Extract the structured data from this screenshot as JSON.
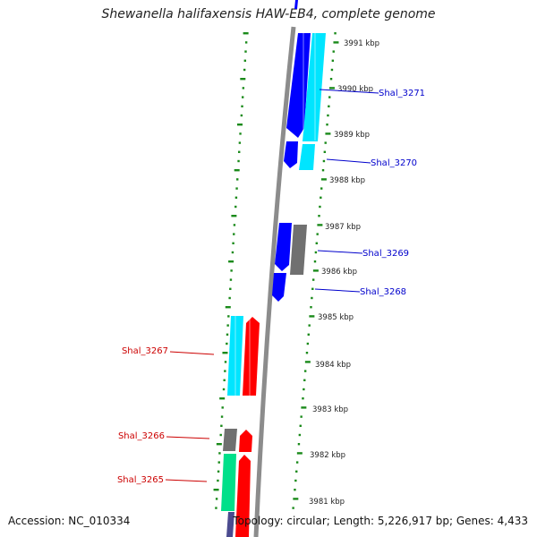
{
  "title": "Shewanella halifaxensis HAW-EB4, complete genome",
  "accession_text": "Accession: NC_010334",
  "summary_text": "Topology: circular; Length: 5,226,917 bp; Genes: 4,433",
  "colors": {
    "forward_strand": "#0000ff",
    "reverse_strand": "#ff0000",
    "cyan": "#00e5ff",
    "gray": "#707070",
    "green": "#00e08a",
    "slate": "#4b4b8f",
    "ruler": "#1a8a1a",
    "backbone": "#8c8c8c"
  },
  "kbp_ticks": [
    {
      "label": "3991 kbp"
    },
    {
      "label": "3990 kbp"
    },
    {
      "label": "3989 kbp"
    },
    {
      "label": "3988 kbp"
    },
    {
      "label": "3987 kbp"
    },
    {
      "label": "3986 kbp"
    },
    {
      "label": "3985 kbp"
    },
    {
      "label": "3984 kbp"
    },
    {
      "label": "3983 kbp"
    },
    {
      "label": "3982 kbp"
    },
    {
      "label": "3981 kbp"
    }
  ],
  "gene_labels": [
    {
      "name": "Shal_3271",
      "color": "#0000cc"
    },
    {
      "name": "Shal_3270",
      "color": "#0000cc"
    },
    {
      "name": "Shal_3269",
      "color": "#0000cc"
    },
    {
      "name": "Shal_3268",
      "color": "#0000cc"
    },
    {
      "name": "Shal_3267",
      "color": "#cc0000"
    },
    {
      "name": "Shal_3266",
      "color": "#cc0000"
    },
    {
      "name": "Shal_3265",
      "color": "#cc0000"
    }
  ]
}
